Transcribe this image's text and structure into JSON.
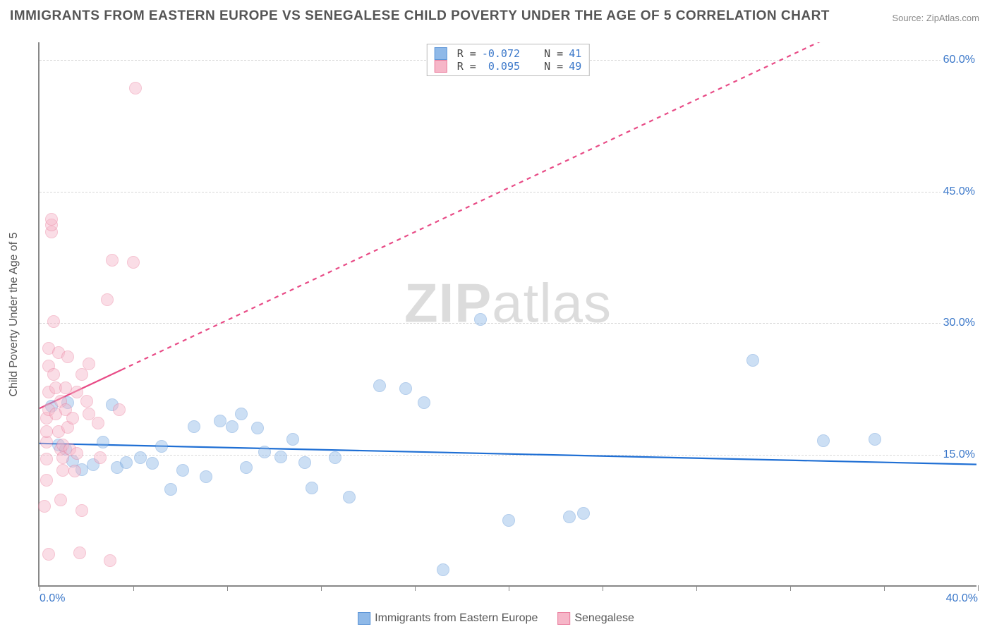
{
  "title": "IMMIGRANTS FROM EASTERN EUROPE VS SENEGALESE CHILD POVERTY UNDER THE AGE OF 5 CORRELATION CHART",
  "source_prefix": "Source: ",
  "source_name": "ZipAtlas.com",
  "watermark_bold": "ZIP",
  "watermark_light": "atlas",
  "ylabel": "Child Poverty Under the Age of 5",
  "chart": {
    "type": "scatter",
    "background_color": "#ffffff",
    "grid_color": "#d8d8d8",
    "axis_color": "#888888",
    "tick_label_color": "#3a77c9",
    "text_color": "#555555",
    "xlim": [
      0,
      40
    ],
    "ylim": [
      0,
      62
    ],
    "xtick_label_left": "0.0%",
    "xtick_label_right": "40.0%",
    "xtick_positions": [
      0,
      4,
      8,
      12,
      16,
      20,
      24,
      28,
      32,
      36,
      40
    ],
    "yticks": [
      {
        "value": 15,
        "label": "15.0%"
      },
      {
        "value": 30,
        "label": "30.0%"
      },
      {
        "value": 45,
        "label": "45.0%"
      },
      {
        "value": 60,
        "label": "60.0%"
      }
    ],
    "marker_radius": 9,
    "marker_opacity": 0.45,
    "trend_line_width": 2.2
  },
  "series": [
    {
      "name": "Immigrants from Eastern Europe",
      "color": "#8fb9e8",
      "border_color": "#5a93d6",
      "trend_color": "#1f6fd4",
      "r_label": "R =",
      "r_value": "-0.072",
      "n_label": "N =",
      "n_value": "41",
      "trend": {
        "x1": 0,
        "y1": 16.2,
        "x2": 40,
        "y2": 13.8,
        "dash": false,
        "extend_x": 40
      },
      "points": [
        [
          0.5,
          20.4
        ],
        [
          0.8,
          16.0
        ],
        [
          1.1,
          15.5
        ],
        [
          1.2,
          20.8
        ],
        [
          1.4,
          14.1
        ],
        [
          1.8,
          13.2
        ],
        [
          2.3,
          13.7
        ],
        [
          2.7,
          16.3
        ],
        [
          3.1,
          20.6
        ],
        [
          3.3,
          13.4
        ],
        [
          3.7,
          14.0
        ],
        [
          4.3,
          14.5
        ],
        [
          4.8,
          13.9
        ],
        [
          5.2,
          15.8
        ],
        [
          5.6,
          10.9
        ],
        [
          6.1,
          13.1
        ],
        [
          6.6,
          18.1
        ],
        [
          7.1,
          12.4
        ],
        [
          7.7,
          18.7
        ],
        [
          8.2,
          18.1
        ],
        [
          8.6,
          19.5
        ],
        [
          8.8,
          13.4
        ],
        [
          9.3,
          17.9
        ],
        [
          9.6,
          15.2
        ],
        [
          10.3,
          14.6
        ],
        [
          10.8,
          16.6
        ],
        [
          11.3,
          14.0
        ],
        [
          11.6,
          11.1
        ],
        [
          12.6,
          14.5
        ],
        [
          13.2,
          10.0
        ],
        [
          14.5,
          22.7
        ],
        [
          15.6,
          22.4
        ],
        [
          16.4,
          20.8
        ],
        [
          17.2,
          1.8
        ],
        [
          18.8,
          30.3
        ],
        [
          20.0,
          7.4
        ],
        [
          22.6,
          7.8
        ],
        [
          23.2,
          8.2
        ],
        [
          30.4,
          25.6
        ],
        [
          33.4,
          16.5
        ],
        [
          35.6,
          16.6
        ]
      ]
    },
    {
      "name": "Senegalese",
      "color": "#f6b6c8",
      "border_color": "#ea7d9d",
      "trend_color": "#e84b86",
      "r_label": "R =",
      "r_value": "0.095",
      "n_label": "N =",
      "n_value": "49",
      "trend": {
        "x1": 0,
        "y1": 20.2,
        "x2": 3.5,
        "y2": 24.6,
        "dash": false,
        "extend_x": 40,
        "extend_dash": true
      },
      "points": [
        [
          0.2,
          9.0
        ],
        [
          0.3,
          12.0
        ],
        [
          0.3,
          14.4
        ],
        [
          0.3,
          16.3
        ],
        [
          0.3,
          17.5
        ],
        [
          0.3,
          19.0
        ],
        [
          0.4,
          20.0
        ],
        [
          0.4,
          22.0
        ],
        [
          0.4,
          25.0
        ],
        [
          0.4,
          27.0
        ],
        [
          0.4,
          3.5
        ],
        [
          0.5,
          40.2
        ],
        [
          0.5,
          41.0
        ],
        [
          0.5,
          41.7
        ],
        [
          0.6,
          30.0
        ],
        [
          0.6,
          24.0
        ],
        [
          0.7,
          22.5
        ],
        [
          0.7,
          19.5
        ],
        [
          0.8,
          17.5
        ],
        [
          0.8,
          26.5
        ],
        [
          0.9,
          21.0
        ],
        [
          0.9,
          15.5
        ],
        [
          0.9,
          9.7
        ],
        [
          1.0,
          13.1
        ],
        [
          1.0,
          14.5
        ],
        [
          1.0,
          16.0
        ],
        [
          1.1,
          20.0
        ],
        [
          1.1,
          22.5
        ],
        [
          1.2,
          26.0
        ],
        [
          1.2,
          18.0
        ],
        [
          1.3,
          15.5
        ],
        [
          1.4,
          19.0
        ],
        [
          1.5,
          13.0
        ],
        [
          1.6,
          15.0
        ],
        [
          1.7,
          3.7
        ],
        [
          1.8,
          24.0
        ],
        [
          1.8,
          8.5
        ],
        [
          2.0,
          21.0
        ],
        [
          2.1,
          19.5
        ],
        [
          2.5,
          18.5
        ],
        [
          2.6,
          14.5
        ],
        [
          2.9,
          32.5
        ],
        [
          3.1,
          37.0
        ],
        [
          3.0,
          2.8
        ],
        [
          3.4,
          20.0
        ],
        [
          4.0,
          36.8
        ],
        [
          4.1,
          56.6
        ],
        [
          2.1,
          25.2
        ],
        [
          1.6,
          22.0
        ]
      ]
    }
  ]
}
